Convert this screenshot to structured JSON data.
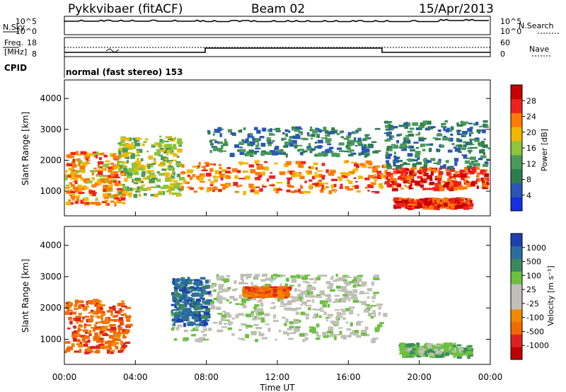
{
  "header": {
    "station": "Pykkvibaer (fitACF)",
    "beam": "Beam 02",
    "date": "15/Apr/2013"
  },
  "top_panels": {
    "nsky_label": "N.Sky",
    "nsearch_label": "N.Search",
    "noise_ticks_left": [
      "10^5",
      "10^0"
    ],
    "noise_ticks_right": [
      "10^5",
      "10^0"
    ],
    "freq_label": "Freq.",
    "freq_unit": "[MHz]",
    "freq_ticks": [
      "18",
      "8"
    ],
    "nave_label": "Nave",
    "nave_ticks": [
      "60",
      "0"
    ],
    "cpid_label": "CPID",
    "cpid_text": "normal (fast stereo) 153"
  },
  "colors": {
    "power": [
      "#1530e0",
      "#2a56b8",
      "#2e7d4e",
      "#4a9a5a",
      "#8cc43a",
      "#f0b800",
      "#ff7a00",
      "#f02020",
      "#c80000"
    ],
    "velocity": [
      "#2040b0",
      "#2a6ea0",
      "#3b8a5c",
      "#6cc040",
      "#c0c0b8",
      "#c0c0b8",
      "#f08a00",
      "#f06a00",
      "#e02020",
      "#c00000"
    ]
  },
  "chart_data": [
    {
      "type": "heatmap",
      "ylabel": "Slant Range [km]",
      "y_ticks": [
        "1000",
        "2000",
        "3000",
        "4000"
      ],
      "ylim": [
        200,
        4600
      ],
      "xlim": [
        0,
        24
      ],
      "colorbar_label": "Power [dB]",
      "colorbar_ticks": [
        "4",
        "8",
        "12",
        "16",
        "20",
        "24",
        "28"
      ],
      "colorbar_range": [
        0,
        32
      ],
      "regions": [
        {
          "x": [
            0.0,
            3.3
          ],
          "y": [
            600,
            2300
          ],
          "value": 22
        },
        {
          "x": [
            3.0,
            6.5
          ],
          "y": [
            900,
            2800
          ],
          "value": 16
        },
        {
          "x": [
            6.5,
            18.0
          ],
          "y": [
            1000,
            2000
          ],
          "value": 24
        },
        {
          "x": [
            8.0,
            17.5
          ],
          "y": [
            2200,
            3100
          ],
          "value": 8
        },
        {
          "x": [
            18.0,
            24.0
          ],
          "y": [
            1100,
            1800
          ],
          "value": 28
        },
        {
          "x": [
            18.5,
            22.8
          ],
          "y": [
            500,
            800
          ],
          "value": 28
        },
        {
          "x": [
            18.0,
            24.0
          ],
          "y": [
            1800,
            3300
          ],
          "value": 8
        }
      ]
    },
    {
      "type": "heatmap",
      "ylabel": "Slant Range [km]",
      "y_ticks": [
        "1000",
        "2000",
        "3000",
        "4000"
      ],
      "ylim": [
        200,
        4600
      ],
      "xlim": [
        0,
        24
      ],
      "xlabel": "Time UT",
      "x_ticks": [
        "00:00",
        "04:00",
        "08:00",
        "12:00",
        "16:00",
        "20:00",
        "00:00"
      ],
      "colorbar_label": "Velocity [m s⁻¹]",
      "colorbar_ticks": [
        "1000",
        "500",
        "100",
        "25",
        "-25",
        "-100",
        "-500",
        "-1000"
      ],
      "regions": [
        {
          "x": [
            0.0,
            3.5
          ],
          "y": [
            600,
            2300
          ],
          "value": -300
        },
        {
          "x": [
            6.0,
            18.0
          ],
          "y": [
            1000,
            2200
          ],
          "value": 0
        },
        {
          "x": [
            8.0,
            17.5
          ],
          "y": [
            2200,
            3100
          ],
          "value": 0
        },
        {
          "x": [
            10.0,
            12.5
          ],
          "y": [
            2400,
            2700
          ],
          "value": -200
        },
        {
          "x": [
            18.8,
            22.8
          ],
          "y": [
            500,
            900
          ],
          "value": 200
        },
        {
          "x": [
            6.0,
            8.0
          ],
          "y": [
            1500,
            3000
          ],
          "value": 400
        }
      ]
    }
  ]
}
